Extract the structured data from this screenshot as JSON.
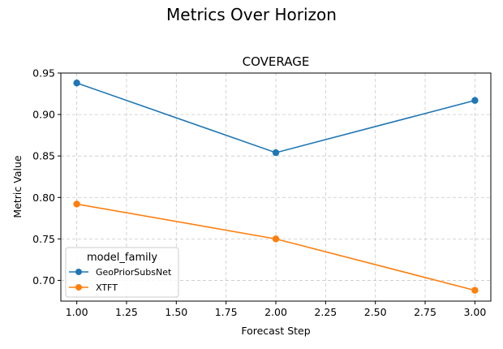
{
  "figure": {
    "suptitle": "Metrics Over Horizon"
  },
  "chart_data": {
    "type": "line",
    "title": "COVERAGE",
    "xlabel": "Forecast Step",
    "ylabel": "Metric Value",
    "x": [
      1.0,
      2.0,
      3.0
    ],
    "xlim": [
      0.92,
      3.08
    ],
    "ylim": [
      0.675,
      0.95
    ],
    "xticks": [
      1.0,
      1.25,
      1.5,
      1.75,
      2.0,
      2.25,
      2.5,
      2.75,
      3.0
    ],
    "xtick_labels": [
      "1.00",
      "1.25",
      "1.50",
      "1.75",
      "2.00",
      "2.25",
      "2.50",
      "2.75",
      "3.00"
    ],
    "yticks": [
      0.7,
      0.75,
      0.8,
      0.85,
      0.9,
      0.95
    ],
    "ytick_labels": [
      "0.70",
      "0.75",
      "0.80",
      "0.85",
      "0.90",
      "0.95"
    ],
    "grid": true,
    "legend": {
      "title": "model_family",
      "placement": "lower-left"
    },
    "series": [
      {
        "name": "GeoPriorSubsNet",
        "color": "#1f77b4",
        "values": [
          0.938,
          0.854,
          0.917
        ]
      },
      {
        "name": "XTFT",
        "color": "#ff7f0e",
        "values": [
          0.792,
          0.75,
          0.688
        ]
      }
    ]
  }
}
